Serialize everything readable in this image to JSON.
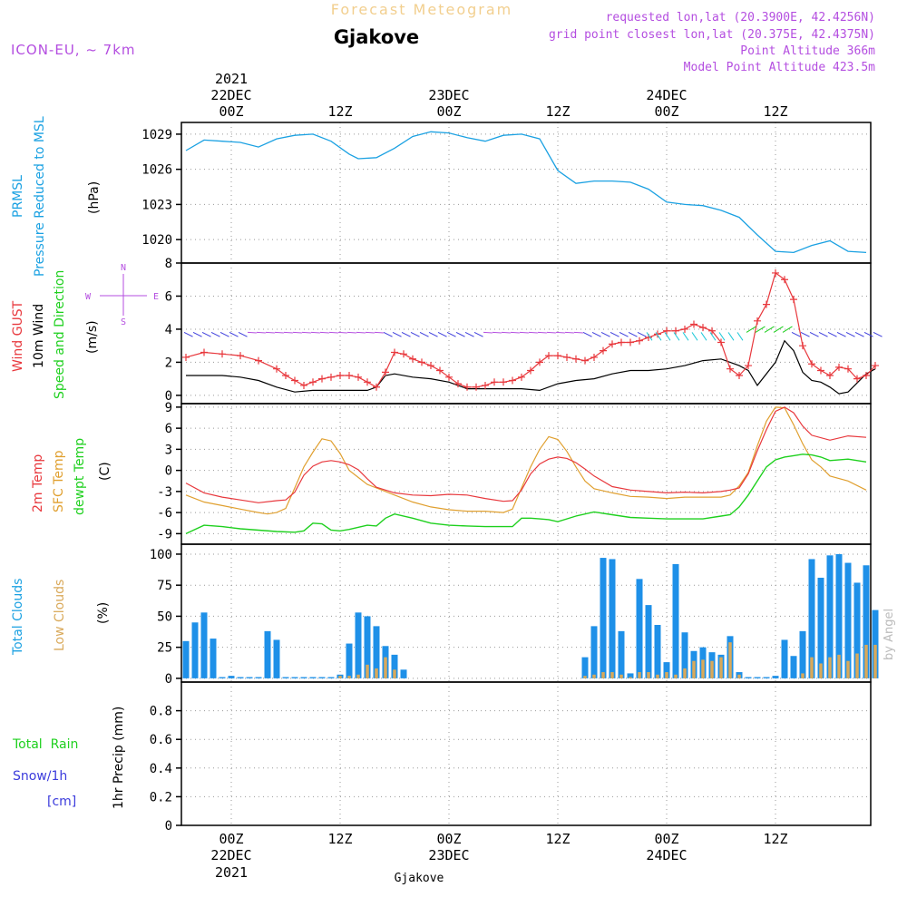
{
  "header": {
    "title": "Forecast Meteogram",
    "location": "Gjakove",
    "model": "ICON-EU, ~ 7km",
    "requested": "requested lon,lat (20.3900E, 42.4256N)",
    "grid_point": "grid point closest lon,lat (20.375E, 42.4375N)",
    "point_altitude": "Point Altitude 366m",
    "model_altitude": "Model Point Altitude 423.5m",
    "credit": "by Angel",
    "footer_location": "Gjakove"
  },
  "time_axis": {
    "top_year": "2021",
    "ticks": [
      {
        "hour": 6,
        "label": "00Z",
        "date": "22DEC",
        "year": "2021"
      },
      {
        "hour": 18,
        "label": "12Z",
        "date": "",
        "year": ""
      },
      {
        "hour": 30,
        "label": "00Z",
        "date": "23DEC",
        "year": ""
      },
      {
        "hour": 42,
        "label": "12Z",
        "date": "",
        "year": ""
      },
      {
        "hour": 54,
        "label": "00Z",
        "date": "24DEC",
        "year": ""
      },
      {
        "hour": 66,
        "label": "12Z",
        "date": "",
        "year": ""
      }
    ],
    "range_hours": [
      1,
      77
    ]
  },
  "panel_labels": {
    "prmsl": "PRMSL",
    "prmsl_desc": "Pressure Reduced to MSL",
    "prmsl_unit": "(hPa)",
    "gust": "Wind GUST",
    "wind10": "10m Wind",
    "wind_dir": "Speed and Direction",
    "wind_unit": "(m/s)",
    "compass_n": "N",
    "compass_s": "S",
    "compass_w": "W",
    "compass_e": "E",
    "t2m": "2m Temp",
    "sfc": "SFC Temp",
    "dewpt": "dewpt Temp",
    "temp_unit": "(C)",
    "total_clouds": "Total Clouds",
    "low_clouds": "Low Clouds",
    "cloud_unit": "(%)",
    "rain": "Total  Rain",
    "snow": "Snow/1h",
    "snow_unit": "[cm]",
    "precip": "1hr Precip (mm)"
  },
  "colors": {
    "pressure": "#1ba1e2",
    "gust": "#e8383d",
    "wind": "#000000",
    "t2m": "#e8383d",
    "sfc": "#e0a030",
    "dewpt": "#1ed01e",
    "total_clouds": "#1e90e8",
    "low_clouds": "#d9a95a",
    "rain": "#1ed01e",
    "snow": "#3b3bdc",
    "title": "#f2cf8f",
    "info": "#b44ee0"
  },
  "chart_data": [
    {
      "type": "line",
      "series": [
        {
          "name": "PRMSL",
          "x": [
            1,
            3,
            5,
            7,
            9,
            11,
            13,
            15,
            17,
            19,
            20,
            22,
            24,
            26,
            28,
            30,
            32,
            34,
            36,
            38,
            40,
            42,
            44,
            46,
            48,
            50,
            52,
            54,
            56,
            58,
            60,
            62,
            64,
            66,
            68,
            70,
            72,
            74,
            76
          ],
          "values": [
            1027.6,
            1028.5,
            1028.4,
            1028.3,
            1027.9,
            1028.6,
            1028.9,
            1029.0,
            1028.4,
            1027.3,
            1026.9,
            1027.0,
            1027.8,
            1028.8,
            1029.2,
            1029.1,
            1028.7,
            1028.4,
            1028.9,
            1029.0,
            1028.6,
            1025.9,
            1024.8,
            1025.0,
            1025.0,
            1024.9,
            1024.3,
            1023.2,
            1023.0,
            1022.9,
            1022.5,
            1021.9,
            1020.4,
            1019.0,
            1018.9,
            1019.5,
            1019.9,
            1019.0,
            1018.9
          ]
        }
      ],
      "yticks": [
        1020,
        1023,
        1026,
        1029
      ],
      "ylim": [
        1018,
        1030
      ]
    },
    {
      "type": "line",
      "series": [
        {
          "name": "Wind GUST",
          "x": [
            1,
            3,
            5,
            7,
            9,
            11,
            12,
            13,
            14,
            15,
            16,
            17,
            18,
            19,
            20,
            21,
            22,
            23,
            24,
            25,
            26,
            27,
            28,
            29,
            30,
            31,
            32,
            33,
            34,
            35,
            36,
            37,
            38,
            39,
            40,
            41,
            42,
            43,
            44,
            45,
            46,
            47,
            48,
            49,
            50,
            51,
            52,
            53,
            54,
            55,
            56,
            57,
            58,
            59,
            60,
            61,
            62,
            63,
            64,
            65,
            66,
            67,
            68,
            69,
            70,
            71,
            72,
            73,
            74,
            75,
            76,
            77
          ],
          "values": [
            2.3,
            2.6,
            2.5,
            2.4,
            2.1,
            1.6,
            1.2,
            0.9,
            0.6,
            0.8,
            1.0,
            1.1,
            1.2,
            1.2,
            1.1,
            0.8,
            0.5,
            1.4,
            2.6,
            2.5,
            2.2,
            2.0,
            1.8,
            1.5,
            1.1,
            0.7,
            0.5,
            0.5,
            0.6,
            0.8,
            0.8,
            0.9,
            1.1,
            1.5,
            2.0,
            2.4,
            2.4,
            2.3,
            2.2,
            2.1,
            2.3,
            2.7,
            3.1,
            3.2,
            3.2,
            3.3,
            3.5,
            3.7,
            3.9,
            3.9,
            4.0,
            4.3,
            4.1,
            3.9,
            3.2,
            1.6,
            1.2,
            1.8,
            4.5,
            5.5,
            7.4,
            7.0,
            5.8,
            3.0,
            1.9,
            1.5,
            1.2,
            1.7,
            1.6,
            1.0,
            1.2,
            1.8
          ]
        },
        {
          "name": "10m Wind",
          "x": [
            1,
            3,
            5,
            7,
            9,
            11,
            13,
            15,
            17,
            19,
            21,
            22,
            23,
            24,
            26,
            28,
            30,
            32,
            34,
            36,
            38,
            40,
            42,
            44,
            46,
            48,
            50,
            52,
            54,
            56,
            58,
            60,
            62,
            63,
            64,
            66,
            67,
            68,
            69,
            70,
            71,
            72,
            73,
            74,
            76,
            77
          ],
          "values": [
            1.2,
            1.2,
            1.2,
            1.1,
            0.9,
            0.5,
            0.2,
            0.3,
            0.3,
            0.3,
            0.3,
            0.5,
            1.2,
            1.3,
            1.1,
            1.0,
            0.8,
            0.4,
            0.4,
            0.4,
            0.4,
            0.3,
            0.7,
            0.9,
            1.0,
            1.3,
            1.5,
            1.5,
            1.6,
            1.8,
            2.1,
            2.2,
            1.8,
            1.5,
            0.6,
            2.0,
            3.3,
            2.7,
            1.4,
            0.9,
            0.8,
            0.5,
            0.1,
            0.2,
            1.3,
            1.6
          ]
        }
      ],
      "yticks": [
        0,
        2,
        4,
        6,
        8
      ],
      "ylim": [
        -0.5,
        8
      ],
      "wind_barbs_y": 3.7
    },
    {
      "type": "line",
      "series": [
        {
          "name": "2m Temp",
          "x": [
            1,
            3,
            5,
            7,
            9,
            11,
            12,
            13,
            14,
            15,
            16,
            17,
            18,
            19,
            20,
            21,
            22,
            24,
            26,
            28,
            30,
            32,
            34,
            36,
            37,
            38,
            39,
            40,
            41,
            42,
            43,
            44,
            45,
            46,
            48,
            50,
            52,
            54,
            56,
            58,
            60,
            61,
            62,
            63,
            64,
            65,
            66,
            67,
            68,
            69,
            70,
            72,
            74,
            76
          ],
          "values": [
            -1.8,
            -3.2,
            -3.8,
            -4.2,
            -4.6,
            -4.3,
            -4.2,
            -3.1,
            -0.7,
            0.6,
            1.2,
            1.4,
            1.2,
            0.8,
            0.1,
            -1.2,
            -2.4,
            -3.2,
            -3.5,
            -3.6,
            -3.4,
            -3.5,
            -4.0,
            -4.4,
            -4.3,
            -2.8,
            -0.5,
            0.9,
            1.6,
            1.9,
            1.7,
            1.1,
            0.2,
            -0.8,
            -2.3,
            -2.8,
            -3.0,
            -3.2,
            -3.1,
            -3.2,
            -3.0,
            -2.8,
            -2.5,
            -0.5,
            2.8,
            5.8,
            8.4,
            9.0,
            8.2,
            6.3,
            5.0,
            4.3,
            4.9,
            4.7
          ]
        },
        {
          "name": "SFC Temp",
          "x": [
            1,
            3,
            5,
            7,
            9,
            10,
            11,
            12,
            13,
            14,
            15,
            16,
            17,
            18,
            19,
            20,
            21,
            22,
            24,
            26,
            28,
            30,
            32,
            34,
            36,
            37,
            38,
            39,
            40,
            41,
            42,
            43,
            44,
            45,
            46,
            48,
            50,
            52,
            54,
            56,
            58,
            60,
            61,
            62,
            63,
            64,
            65,
            66,
            67,
            68,
            69,
            70,
            71,
            72,
            74,
            76
          ],
          "values": [
            -3.5,
            -4.5,
            -5.0,
            -5.5,
            -6.0,
            -6.2,
            -6.0,
            -5.4,
            -2.5,
            0.5,
            2.6,
            4.5,
            4.2,
            2.4,
            0.0,
            -1.0,
            -2.0,
            -2.5,
            -3.5,
            -4.5,
            -5.2,
            -5.6,
            -5.8,
            -5.8,
            -6.0,
            -5.5,
            -2.5,
            0.5,
            3.0,
            4.8,
            4.4,
            2.7,
            0.5,
            -1.5,
            -2.6,
            -3.2,
            -3.7,
            -3.8,
            -4.0,
            -3.8,
            -3.8,
            -3.8,
            -3.5,
            -2.2,
            -0.3,
            3.5,
            7.0,
            9.0,
            8.9,
            6.5,
            3.8,
            1.5,
            0.5,
            -0.8,
            -1.5,
            -2.8
          ]
        },
        {
          "name": "dewpt Temp",
          "x": [
            1,
            3,
            5,
            7,
            9,
            11,
            13,
            14,
            15,
            16,
            17,
            18,
            19,
            21,
            22,
            23,
            24,
            26,
            28,
            30,
            32,
            34,
            36,
            37,
            38,
            39,
            40,
            41,
            42,
            44,
            46,
            48,
            50,
            52,
            54,
            56,
            58,
            60,
            61,
            62,
            63,
            64,
            65,
            66,
            67,
            68,
            69,
            70,
            71,
            72,
            74,
            76
          ],
          "values": [
            -9.0,
            -7.8,
            -8.0,
            -8.3,
            -8.5,
            -8.7,
            -8.8,
            -8.6,
            -7.5,
            -7.6,
            -8.5,
            -8.6,
            -8.4,
            -7.8,
            -7.9,
            -6.8,
            -6.2,
            -6.8,
            -7.5,
            -7.8,
            -7.9,
            -8.0,
            -8.0,
            -8.0,
            -6.8,
            -6.8,
            -6.9,
            -7.0,
            -7.3,
            -6.5,
            -5.9,
            -6.3,
            -6.7,
            -6.8,
            -6.9,
            -6.9,
            -6.9,
            -6.5,
            -6.3,
            -5.2,
            -3.5,
            -1.5,
            0.5,
            1.5,
            1.9,
            2.1,
            2.3,
            2.2,
            1.9,
            1.4,
            1.6,
            1.2
          ]
        }
      ],
      "yticks": [
        -9,
        -6,
        -3,
        0,
        3,
        6,
        9
      ],
      "ylim": [
        -10.5,
        9.5
      ]
    },
    {
      "type": "bar",
      "series": [
        {
          "name": "Total Clouds",
          "x": [
            1,
            2,
            3,
            4,
            5,
            6,
            7,
            8,
            9,
            10,
            11,
            12,
            13,
            14,
            15,
            16,
            17,
            18,
            19,
            20,
            21,
            22,
            23,
            24,
            25,
            26,
            27,
            28,
            29,
            30,
            31,
            32,
            33,
            34,
            35,
            36,
            37,
            38,
            39,
            40,
            41,
            42,
            43,
            44,
            45,
            46,
            47,
            48,
            49,
            50,
            51,
            52,
            53,
            54,
            55,
            56,
            57,
            58,
            59,
            60,
            61,
            62,
            63,
            64,
            65,
            66,
            67,
            68,
            69,
            70,
            71,
            72,
            73,
            74,
            75,
            76,
            77
          ],
          "values": [
            30,
            45,
            53,
            32,
            1,
            2,
            1,
            1,
            1,
            38,
            31,
            1,
            1,
            1,
            1,
            1,
            1,
            3,
            28,
            53,
            50,
            42,
            26,
            19,
            7,
            0,
            0,
            0,
            0,
            0,
            0,
            0,
            0,
            0,
            0,
            0,
            0,
            0,
            0,
            0,
            0,
            0,
            0,
            0,
            17,
            42,
            97,
            96,
            38,
            4,
            80,
            59,
            43,
            13,
            92,
            37,
            22,
            25,
            21,
            19,
            34,
            5,
            1,
            1,
            1,
            2,
            31,
            18,
            38,
            96,
            81,
            99,
            100,
            93,
            77,
            91,
            55
          ]
        },
        {
          "name": "Low Clouds",
          "x": [
            1,
            2,
            3,
            4,
            5,
            6,
            7,
            8,
            9,
            10,
            11,
            12,
            13,
            14,
            15,
            16,
            17,
            18,
            19,
            20,
            21,
            22,
            23,
            24,
            25,
            26,
            27,
            28,
            29,
            30,
            31,
            32,
            33,
            34,
            35,
            36,
            37,
            38,
            39,
            40,
            41,
            42,
            43,
            44,
            45,
            46,
            47,
            48,
            49,
            50,
            51,
            52,
            53,
            54,
            55,
            56,
            57,
            58,
            59,
            60,
            61,
            62,
            63,
            64,
            65,
            66,
            67,
            68,
            69,
            70,
            71,
            72,
            73,
            74,
            75,
            76,
            77
          ],
          "values": [
            0,
            0,
            0,
            0,
            0,
            0,
            0,
            0,
            0,
            0,
            0,
            0,
            0,
            0,
            0,
            0,
            0,
            2,
            2,
            3,
            11,
            8,
            17,
            7,
            0,
            0,
            0,
            0,
            0,
            0,
            0,
            0,
            0,
            0,
            0,
            0,
            0,
            0,
            0,
            0,
            0,
            0,
            0,
            0,
            2,
            3,
            5,
            5,
            3,
            1,
            5,
            5,
            3,
            5,
            3,
            8,
            14,
            15,
            14,
            17,
            29,
            3,
            0,
            0,
            0,
            0,
            0,
            0,
            4,
            17,
            12,
            17,
            19,
            14,
            20,
            27,
            27
          ]
        }
      ],
      "yticks": [
        0,
        25,
        50,
        75,
        100
      ],
      "ylim": [
        -3,
        108
      ]
    },
    {
      "type": "bar",
      "series": [
        {
          "name": "Total Rain",
          "x": [],
          "values": []
        },
        {
          "name": "Snow/1h",
          "x": [],
          "values": []
        }
      ],
      "yticks": [
        0,
        0.2,
        0.4,
        0.6,
        0.8
      ],
      "ylim": [
        0,
        1.0
      ]
    }
  ]
}
